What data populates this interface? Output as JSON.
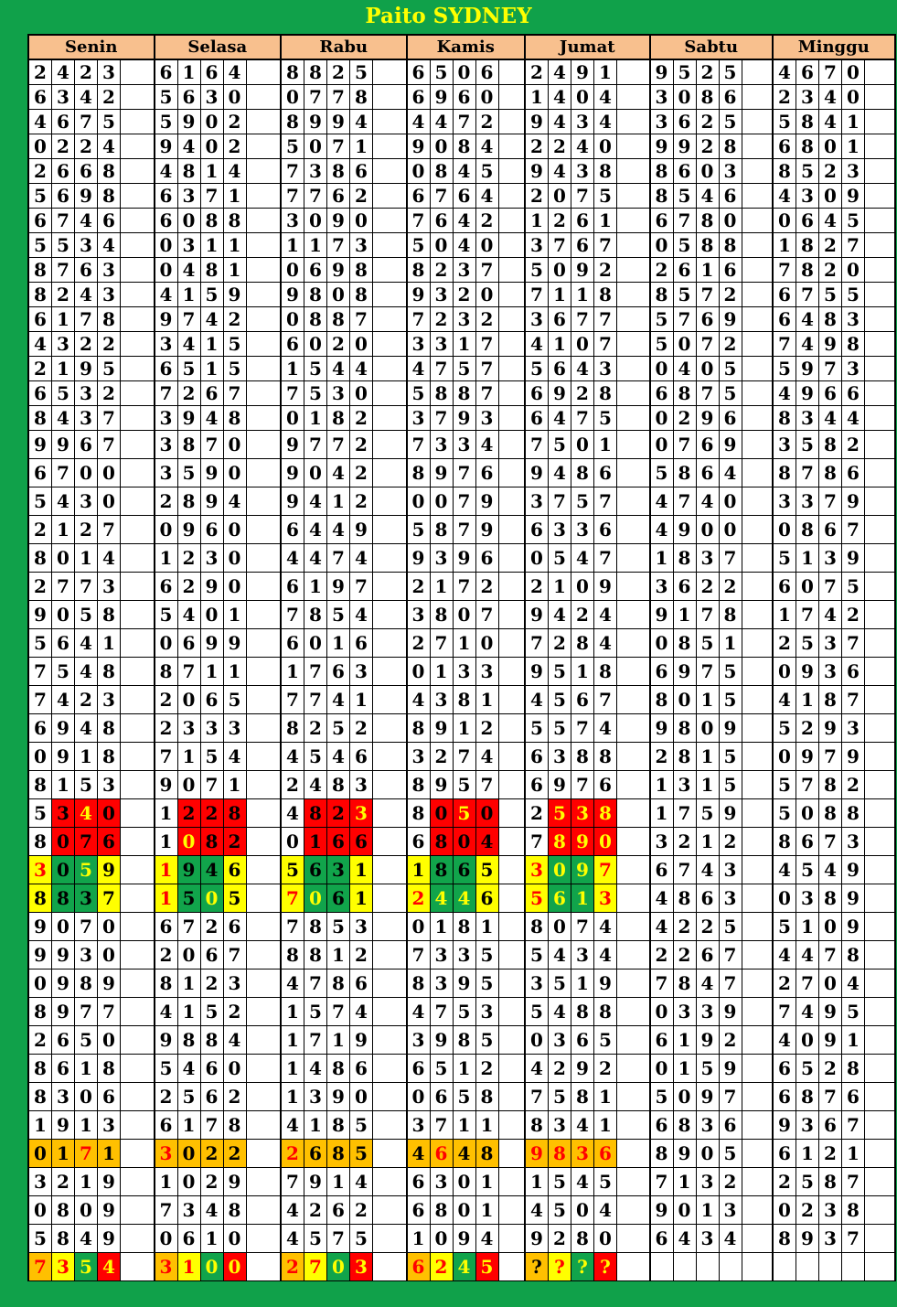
{
  "title": "Paito SYDNEY",
  "days": [
    "Senin",
    "Selasa",
    "Rabu",
    "Kamis",
    "Jumat",
    "Sabtu",
    "Minggu"
  ],
  "colors": {
    "frame": "#10a14a",
    "title": "#ffff00",
    "header_bg": "#f8c08e",
    "red": "#ff0000",
    "yellow": "#ffff00",
    "green": "#11a44b",
    "orange": "#ffc000",
    "black": "#000000"
  },
  "rows": [
    [
      "2423",
      "6164",
      "8825",
      "6506",
      "2491",
      "9525",
      "4670"
    ],
    [
      "6342",
      "5630",
      "0778",
      "6960",
      "1404",
      "3086",
      "2340"
    ],
    [
      "4675",
      "5902",
      "8994",
      "4472",
      "9434",
      "3625",
      "5841"
    ],
    [
      "0224",
      "9402",
      "5071",
      "9084",
      "2240",
      "9928",
      "6801"
    ],
    [
      "2668",
      "4814",
      "7386",
      "0845",
      "9438",
      "8603",
      "8523"
    ],
    [
      "5698",
      "6371",
      "7762",
      "6764",
      "2075",
      "8546",
      "4309"
    ],
    [
      "6746",
      "6088",
      "3090",
      "7642",
      "1261",
      "6780",
      "0645"
    ],
    [
      "5534",
      "0311",
      "1173",
      "5040",
      "3767",
      "0588",
      "1827"
    ],
    [
      "8763",
      "0481",
      "0698",
      "8237",
      "5092",
      "2616",
      "7820"
    ],
    [
      "8243",
      "4159",
      "9808",
      "9320",
      "7118",
      "8572",
      "6755"
    ],
    [
      "6178",
      "9742",
      "0887",
      "7232",
      "3677",
      "5769",
      "6483"
    ],
    [
      "4322",
      "3415",
      "6020",
      "3317",
      "4107",
      "5072",
      "7498"
    ],
    [
      "2195",
      "6515",
      "1544",
      "4757",
      "5643",
      "0405",
      "5973"
    ],
    [
      "6532",
      "7267",
      "7530",
      "5887",
      "6928",
      "6875",
      "4966"
    ],
    [
      "8437",
      "3948",
      "0182",
      "3793",
      "6475",
      "0296",
      "8344"
    ],
    [
      "9967",
      "3870",
      "9772",
      "7334",
      "7501",
      "0769",
      "3582"
    ],
    [
      "6700",
      "3590",
      "9042",
      "8976",
      "9486",
      "5864",
      "8786"
    ],
    [
      "5430",
      "2894",
      "9412",
      "0079",
      "3757",
      "4740",
      "3379"
    ],
    [
      "2127",
      "0960",
      "6449",
      "5879",
      "6336",
      "4900",
      "0867"
    ],
    [
      "8014",
      "1230",
      "4474",
      "9396",
      "0547",
      "1837",
      "5139"
    ],
    [
      "2773",
      "6290",
      "6197",
      "2172",
      "2109",
      "3622",
      "6075"
    ],
    [
      "9058",
      "5401",
      "7854",
      "3807",
      "9424",
      "9178",
      "1742"
    ],
    [
      "5641",
      "0699",
      "6016",
      "2710",
      "7284",
      "0851",
      "2537"
    ],
    [
      "7548",
      "8711",
      "1763",
      "0133",
      "9518",
      "6975",
      "0936"
    ],
    [
      "7423",
      "2065",
      "7741",
      "4381",
      "4567",
      "8015",
      "4187"
    ],
    [
      "6948",
      "2333",
      "8252",
      "8912",
      "5574",
      "9809",
      "5293"
    ],
    [
      "0918",
      "7154",
      "4546",
      "3274",
      "6388",
      "2815",
      "0979"
    ],
    [
      "8153",
      "9071",
      "2483",
      "8957",
      "6976",
      "1315",
      "5782"
    ],
    [
      "5340",
      "1228",
      "4823",
      "8050",
      "2538",
      "1759",
      "5088"
    ],
    [
      "8076",
      "1082",
      "0166",
      "6804",
      "7890",
      "3212",
      "8673"
    ],
    [
      "3059",
      "1946",
      "5631",
      "1865",
      "3097",
      "6743",
      "4549"
    ],
    [
      "8837",
      "1505",
      "7061",
      "2446",
      "5613",
      "4863",
      "0389"
    ],
    [
      "9070",
      "6726",
      "7853",
      "0181",
      "8074",
      "4225",
      "5109"
    ],
    [
      "9930",
      "2067",
      "8812",
      "7335",
      "5434",
      "2267",
      "4478"
    ],
    [
      "0989",
      "8123",
      "4786",
      "8395",
      "3519",
      "7847",
      "2704"
    ],
    [
      "8977",
      "4152",
      "1574",
      "4753",
      "5488",
      "0339",
      "7495"
    ],
    [
      "2650",
      "9884",
      "1719",
      "3985",
      "0365",
      "6192",
      "4091"
    ],
    [
      "8618",
      "5460",
      "1486",
      "6512",
      "4292",
      "0159",
      "6528"
    ],
    [
      "8306",
      "2562",
      "1390",
      "0658",
      "7581",
      "5097",
      "6876"
    ],
    [
      "1913",
      "6178",
      "4185",
      "3711",
      "8341",
      "6836",
      "9367"
    ],
    [
      "0171",
      "3022",
      "2685",
      "4648",
      "9836",
      "8905",
      "6121"
    ],
    [
      "3219",
      "1029",
      "7914",
      "6301",
      "1545",
      "7132",
      "2587"
    ],
    [
      "0809",
      "7348",
      "4262",
      "6801",
      "4504",
      "9013",
      "0238"
    ],
    [
      "5849",
      "0610",
      "4575",
      "1094",
      "9280",
      "6434",
      "8937"
    ],
    [
      "7354",
      "3100",
      "2703",
      "6245",
      "????",
      "",
      ""
    ]
  ],
  "highlights": {
    "28": [
      [
        "",
        "rk",
        "ry",
        "rk"
      ],
      [
        "",
        "rk",
        "rk",
        "rk"
      ],
      [
        "",
        "rk",
        "rk",
        "ry"
      ],
      [
        "",
        "rk",
        "ry",
        "rk"
      ],
      [
        "",
        "ry",
        "ry",
        "ry"
      ]
    ],
    "29": [
      [
        "",
        "rk",
        "rk",
        "rk"
      ],
      [
        "",
        "ry",
        "rk",
        "rk"
      ],
      [
        "",
        "rk",
        "rk",
        "rk"
      ],
      [
        "",
        "rk",
        "rk",
        "rk"
      ],
      [
        "",
        "ry",
        "ry",
        "ry"
      ]
    ],
    "30": [
      [
        "yr",
        "gk",
        "gy",
        "yk"
      ],
      [
        "yr",
        "gk",
        "gk",
        "yk"
      ],
      [
        "yk",
        "gk",
        "gk",
        "yk"
      ],
      [
        "yk",
        "gk",
        "gk",
        "yk"
      ],
      [
        "yr",
        "gy",
        "gy",
        "yr"
      ]
    ],
    "31": [
      [
        "yk",
        "gk",
        "gk",
        "yk"
      ],
      [
        "yr",
        "gk",
        "gy",
        "yk"
      ],
      [
        "yr",
        "gy",
        "gk",
        "yk"
      ],
      [
        "yr",
        "gy",
        "gy",
        "yk"
      ],
      [
        "yr",
        "gy",
        "gy",
        "yr"
      ]
    ],
    "40": [
      [
        "ok",
        "ok",
        "or",
        "ok"
      ],
      [
        "or",
        "ok",
        "ok",
        "ok"
      ],
      [
        "or",
        "ok",
        "ok",
        "ok"
      ],
      [
        "ok",
        "or",
        "ok",
        "ok"
      ],
      [
        "or",
        "or",
        "or",
        "or"
      ]
    ],
    "44": [
      [
        "or",
        "yr",
        "gy",
        "ry"
      ],
      [
        "or",
        "yr",
        "gy",
        "ry"
      ],
      [
        "or",
        "yr",
        "gy",
        "ry"
      ],
      [
        "or",
        "yr",
        "gy",
        "ry"
      ],
      [
        "ok",
        "yr",
        "gy",
        "ry"
      ]
    ]
  }
}
